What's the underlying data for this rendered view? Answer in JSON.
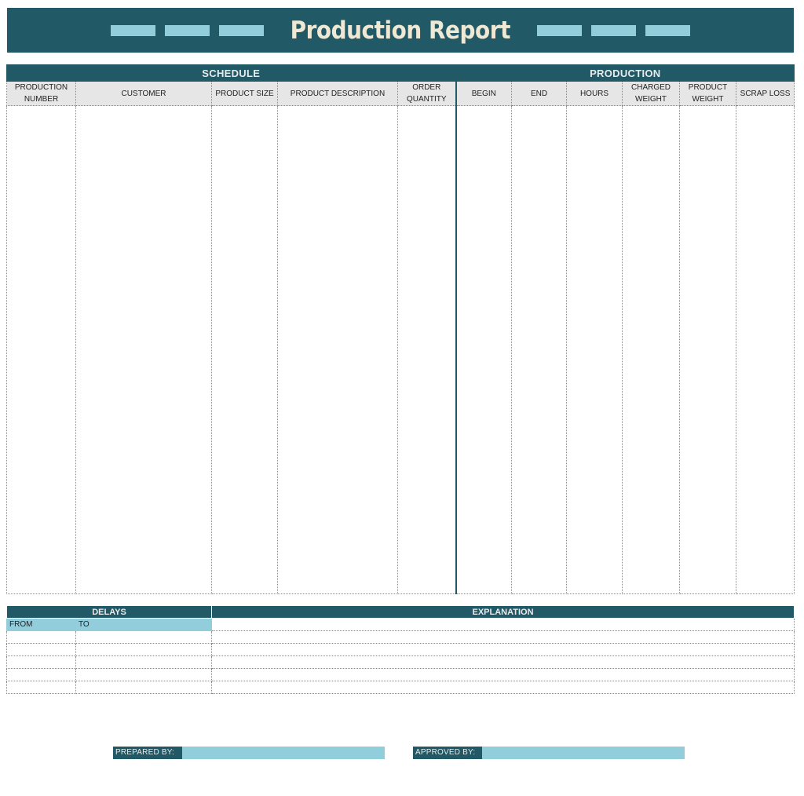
{
  "title": "Production Report",
  "colors": {
    "primary": "#215967",
    "accent": "#92cddc",
    "header_bg": "#e7e6e6"
  },
  "table": {
    "groups": {
      "schedule": "SCHEDULE",
      "production": "PRODUCTION"
    },
    "columns": [
      {
        "line1": "PRODUCTION",
        "line2": "NUMBER"
      },
      {
        "line1": "CUSTOMER",
        "line2": ""
      },
      {
        "line1": "PRODUCT SIZE",
        "line2": ""
      },
      {
        "line1": "PRODUCT DESCRIPTION",
        "line2": ""
      },
      {
        "line1": "ORDER",
        "line2": "QUANTITY"
      },
      {
        "line1": "BEGIN",
        "line2": ""
      },
      {
        "line1": "END",
        "line2": ""
      },
      {
        "line1": "HOURS",
        "line2": ""
      },
      {
        "line1": "CHARGED",
        "line2": "WEIGHT"
      },
      {
        "line1": "PRODUCT",
        "line2": "WEIGHT"
      },
      {
        "line1": "SCRAP LOSS",
        "line2": ""
      }
    ]
  },
  "delays": {
    "delays_label": "DELAYS",
    "explanation_label": "EXPLANATION",
    "from_label": "FROM",
    "to_label": "TO"
  },
  "signatures": {
    "prepared_by": "PREPARED BY:",
    "approved_by": "APPROVED BY:"
  }
}
